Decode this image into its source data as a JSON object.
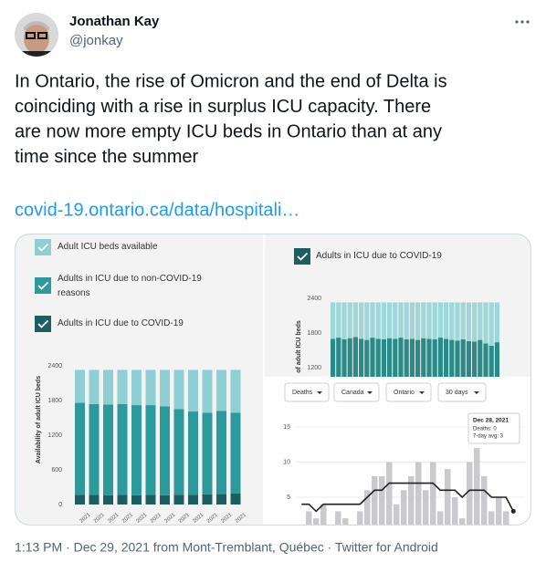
{
  "tweet": {
    "name": "Jonathan Kay",
    "handle": "@jonkay",
    "text_lines": [
      "In Ontario, the rise of Omicron and the end of Delta is",
      "coinciding with a rise in surplus ICU capacity. There",
      "are now more empty ICU beds in Ontario than at any",
      "time since the summer"
    ],
    "link": "covid-19.ontario.ca/data/hospitali…",
    "footer": "1:13 PM · Dec 29, 2021 from Mont-Tremblant, Québec · Twitter for Android"
  },
  "chart_data": [
    {
      "type": "stacked_bar",
      "ylabel": "Availability of adult ICU beds",
      "categories": [
        "2021",
        "2021",
        "2021",
        "2021",
        "2021",
        "2021",
        "2021",
        "2021",
        "2021",
        "2021",
        "2021",
        "2021"
      ],
      "series": [
        {
          "name": "Adults in ICU due to COVID-19",
          "color": "#1d5e61",
          "values": [
            170,
            165,
            160,
            165,
            160,
            165,
            160,
            170,
            170,
            175,
            180,
            190
          ]
        },
        {
          "name": "Adults in ICU due to non-COVID-19 reasons",
          "color": "#2c9a9b",
          "values": [
            1590,
            1575,
            1570,
            1575,
            1560,
            1555,
            1540,
            1480,
            1440,
            1415,
            1440,
            1400
          ]
        },
        {
          "name": "Adult ICU beds available",
          "color": "#8fcfd3",
          "values": [
            570,
            590,
            600,
            590,
            610,
            610,
            630,
            680,
            720,
            740,
            710,
            740
          ]
        }
      ],
      "ylim": [
        0,
        2400
      ],
      "yticks": [
        0,
        600,
        1200,
        1800,
        2400
      ]
    },
    {
      "type": "stacked_bar",
      "ylabel": "of adult ICU beds",
      "series": [
        {
          "name": "Adults in ICU due to COVID-19",
          "color": "#2a8a88",
          "values": [
            1700,
            1720,
            1690,
            1710,
            1730,
            1700,
            1680,
            1720,
            1700,
            1690,
            1710,
            1700,
            1720,
            1690,
            1700,
            1680,
            1710,
            1700,
            1690,
            1720,
            1700,
            1680,
            1670,
            1690,
            1660,
            1650,
            1680,
            1620,
            1580,
            1640
          ]
        },
        {
          "color": "#9ed7d9",
          "values": [
            630,
            610,
            640,
            620,
            600,
            630,
            650,
            610,
            630,
            640,
            620,
            630,
            610,
            640,
            630,
            650,
            620,
            630,
            640,
            610,
            630,
            650,
            660,
            640,
            670,
            680,
            650,
            710,
            750,
            690
          ]
        }
      ],
      "ylim": [
        0,
        2400
      ],
      "yticks": [
        1200,
        1800,
        2400
      ]
    },
    {
      "type": "bar_line",
      "filters": [
        "Deaths",
        "Canada",
        "Ontario",
        "30 days"
      ],
      "bar_color": "#c9c9ce",
      "line_color": "#222222",
      "values": [
        1,
        3,
        2,
        4,
        1,
        3,
        2,
        1,
        3,
        6,
        8,
        8,
        10,
        4,
        6,
        8,
        10,
        6,
        10,
        3,
        9,
        5,
        2,
        10,
        12,
        8,
        3,
        5,
        3,
        0
      ],
      "line_values": [
        4,
        4,
        3,
        4,
        4,
        4,
        4,
        4,
        4,
        5,
        6,
        6,
        7,
        7,
        7,
        7,
        7,
        7,
        7,
        6,
        6,
        6,
        5,
        6,
        6,
        6,
        5,
        5,
        5,
        3
      ],
      "ylim": [
        0,
        20
      ],
      "yticks": [
        5,
        10,
        15
      ],
      "tooltip": {
        "title": "Dec 28, 2021",
        "lines": [
          "Deaths: 0",
          "7-day avg: 3"
        ]
      }
    }
  ]
}
